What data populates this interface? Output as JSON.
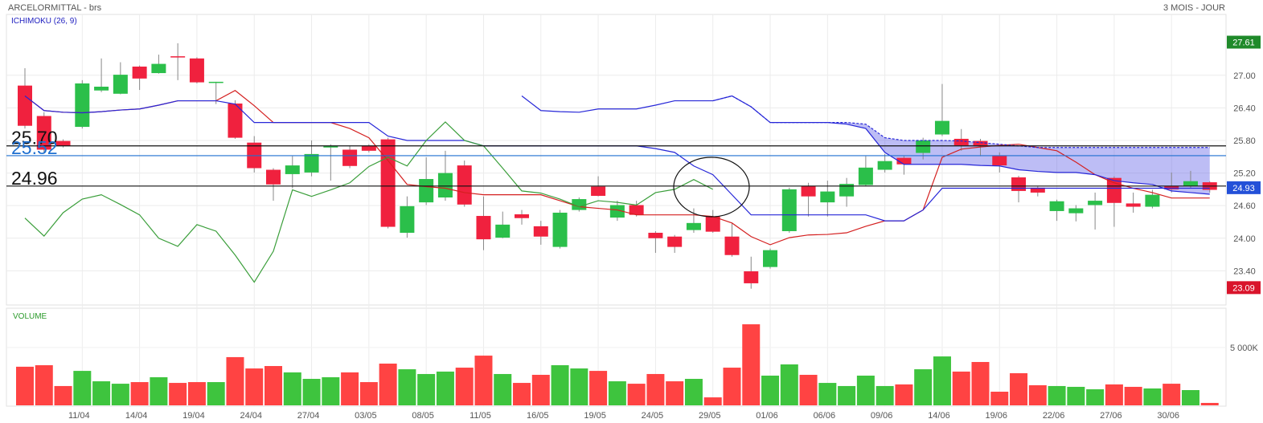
{
  "header": {
    "title": "ARCELORMITTAL - brs",
    "period": "3 MOIS - JOUR"
  },
  "chart_data": [
    {
      "type": "candlestick",
      "title": "ICHIMOKU (26, 9)",
      "categories": [
        null,
        null,
        null,
        "11/04",
        null,
        null,
        "14/04",
        null,
        null,
        "19/04",
        null,
        null,
        "24/04",
        null,
        null,
        "27/04",
        null,
        null,
        "03/05",
        null,
        null,
        "08/05",
        null,
        null,
        "11/05",
        null,
        null,
        "16/05",
        null,
        null,
        "19/05",
        null,
        null,
        "24/05",
        null,
        null,
        "29/05",
        null,
        null,
        "01/06",
        null,
        null,
        "06/06",
        null,
        null,
        "09/06",
        null,
        null,
        "14/06",
        null,
        null,
        "19/06",
        null,
        null,
        "22/06",
        null,
        null,
        "27/06",
        null,
        null,
        "30/06",
        null,
        null
      ],
      "open": [
        26.81,
        26.25,
        25.79,
        26.05,
        26.72,
        26.66,
        27.16,
        27.04,
        27.35,
        27.31,
        26.87,
        26.48,
        25.76,
        25.26,
        25.18,
        25.21,
        25.67,
        25.63,
        25.7,
        25.82,
        24.1,
        24.66,
        24.75,
        25.34,
        24.41,
        24.01,
        24.44,
        24.22,
        23.84,
        24.52,
        24.95,
        24.38,
        24.61,
        24.1,
        24.03,
        24.15,
        24.4,
        24.03,
        23.39,
        23.47,
        24.13,
        24.96,
        24.66,
        24.77,
        24.98,
        25.26,
        25.48,
        25.57,
        25.91,
        25.83,
        25.79,
        25.52,
        25.12,
        24.93,
        24.5,
        24.46,
        24.61,
        25.11,
        24.64,
        24.58,
        24.96,
        24.96,
        25.03
      ],
      "high": [
        27.13,
        26.32,
        25.82,
        26.91,
        27.31,
        27.24,
        27.18,
        27.38,
        27.59,
        27.33,
        26.88,
        26.54,
        25.88,
        25.29,
        25.51,
        25.8,
        25.73,
        25.7,
        25.73,
        25.85,
        24.77,
        25.49,
        25.61,
        25.43,
        24.77,
        24.49,
        24.52,
        24.32,
        24.52,
        24.75,
        25.14,
        24.69,
        24.69,
        24.13,
        24.06,
        24.55,
        24.52,
        24.28,
        23.66,
        23.81,
        24.93,
        25.02,
        25.06,
        25.11,
        25.51,
        25.55,
        25.52,
        25.85,
        26.84,
        26.01,
        25.83,
        25.58,
        25.15,
        24.95,
        24.71,
        24.61,
        24.84,
        25.14,
        24.84,
        24.89,
        25.21,
        25.24,
        25.05
      ],
      "low": [
        26.02,
        25.58,
        25.67,
        26.02,
        26.69,
        26.65,
        26.73,
        27.03,
        26.91,
        26.85,
        26.47,
        25.83,
        25.21,
        24.69,
        24.92,
        25.14,
        25.06,
        25.29,
        25.58,
        24.18,
        24.01,
        24.61,
        24.69,
        24.58,
        23.78,
        24.0,
        24.25,
        23.88,
        23.81,
        24.49,
        24.77,
        24.32,
        24.4,
        23.73,
        23.73,
        24.1,
        24.1,
        23.66,
        23.07,
        23.44,
        24.1,
        24.4,
        24.4,
        24.58,
        24.96,
        25.21,
        25.17,
        25.45,
        25.88,
        25.61,
        25.51,
        25.21,
        24.66,
        24.77,
        24.32,
        24.31,
        24.16,
        24.21,
        24.47,
        24.55,
        24.84,
        24.92,
        24.84
      ],
      "close": [
        26.07,
        25.63,
        25.7,
        26.85,
        26.79,
        27.01,
        26.94,
        27.21,
        27.33,
        26.87,
        26.88,
        25.85,
        25.29,
        24.99,
        25.34,
        25.55,
        25.7,
        25.33,
        25.61,
        24.21,
        24.59,
        25.09,
        25.2,
        24.62,
        23.98,
        24.25,
        24.37,
        24.03,
        24.47,
        24.72,
        24.78,
        24.61,
        24.43,
        24.0,
        23.84,
        24.28,
        24.12,
        23.69,
        23.17,
        23.78,
        24.9,
        24.77,
        24.86,
        25.0,
        25.3,
        25.42,
        25.36,
        25.8,
        26.16,
        25.71,
        25.71,
        25.34,
        24.87,
        24.84,
        24.68,
        24.55,
        24.69,
        24.65,
        24.58,
        24.8,
        24.9,
        25.05,
        24.89
      ],
      "up_color": "#2bbf4a",
      "down_color": "#f0213e",
      "ylim": [
        22.77,
        28.12
      ],
      "yticks": [
        {
          "value": 27,
          "label": "27.00"
        },
        {
          "value": 26.4,
          "label": "26.40"
        },
        {
          "value": 25.8,
          "label": "25.80"
        },
        {
          "value": 25.2,
          "label": "25.20"
        },
        {
          "value": 24.6,
          "label": "24.60"
        },
        {
          "value": 24,
          "label": "24.00"
        },
        {
          "value": 23.4,
          "label": "23.40"
        }
      ],
      "grid": true,
      "lines": [
        {
          "color": "#d42020",
          "values": [
            26.62,
            26.35,
            26.32,
            26.31,
            26.33,
            26.36,
            26.38,
            26.45,
            26.53,
            26.53,
            26.53,
            26.72,
            26.44,
            26.13,
            26.13,
            26.13,
            26.13,
            26.02,
            25.85,
            25.43,
            24.99,
            24.95,
            24.92,
            24.84,
            24.8,
            24.8,
            24.8,
            24.8,
            24.69,
            24.58,
            24.55,
            24.52,
            24.43,
            24.43,
            24.43,
            24.43,
            24.4,
            24.28,
            24.03,
            23.88,
            24.01,
            24.06,
            24.07,
            24.1,
            24.22,
            24.32,
            24.32,
            24.52,
            25.49,
            25.64,
            25.68,
            25.71,
            25.73,
            25.67,
            25.61,
            25.4,
            25.17,
            25.02,
            24.92,
            24.84,
            24.74,
            24.74,
            24.74
          ]
        },
        {
          "color": "#2727d8",
          "values": [
            26.62,
            26.35,
            26.32,
            26.31,
            26.33,
            26.36,
            26.38,
            26.45,
            26.53,
            26.53,
            26.53,
            26.47,
            26.13,
            26.13,
            26.13,
            26.13,
            26.13,
            26.13,
            26.13,
            25.88,
            25.8,
            25.8,
            25.8,
            25.8,
            25.7,
            25.7,
            25.7,
            25.7,
            25.7,
            25.7,
            25.7,
            25.7,
            25.7,
            25.65,
            25.58,
            25.33,
            25.17,
            24.8,
            24.43,
            24.43,
            24.43,
            24.43,
            24.43,
            24.43,
            24.43,
            24.32,
            24.32,
            24.52,
            24.92,
            24.92,
            24.92,
            24.92,
            24.92,
            24.92,
            24.92,
            24.92,
            24.92,
            24.92,
            24.92,
            24.92,
            24.92,
            24.92,
            24.92
          ]
        },
        {
          "color": "#2727d8",
          "values": [
            null,
            null,
            null,
            null,
            null,
            null,
            null,
            null,
            null,
            null,
            null,
            null,
            null,
            null,
            null,
            null,
            null,
            null,
            null,
            null,
            null,
            null,
            null,
            null,
            null,
            null,
            26.62,
            26.35,
            26.33,
            26.32,
            26.38,
            26.38,
            26.38,
            26.45,
            26.53,
            26.53,
            26.53,
            26.62,
            26.42,
            26.13,
            26.13,
            26.13,
            26.13,
            26.1,
            26.02,
            25.58,
            25.36,
            25.36,
            25.36,
            25.36,
            25.34,
            25.33,
            25.26,
            25.23,
            25.21,
            25.21,
            25.17,
            25.06,
            25.02,
            24.99,
            24.87,
            24.84,
            24.81
          ]
        },
        {
          "color": "#2727d8",
          "dashed": true,
          "values": [
            null,
            null,
            null,
            null,
            null,
            null,
            null,
            null,
            null,
            null,
            null,
            null,
            null,
            null,
            null,
            null,
            null,
            null,
            null,
            null,
            null,
            null,
            null,
            null,
            null,
            null,
            null,
            null,
            null,
            null,
            null,
            null,
            null,
            null,
            null,
            null,
            26.53,
            26.62,
            26.42,
            26.13,
            26.13,
            26.13,
            26.13,
            26.13,
            26.1,
            25.85,
            25.8,
            25.8,
            25.8,
            25.79,
            25.76,
            25.73,
            25.7,
            25.67,
            25.67,
            25.67,
            25.67,
            25.67,
            25.67,
            25.67,
            25.67,
            25.67,
            25.67
          ]
        },
        {
          "color": "#3a9e3a",
          "values": [
            24.37,
            24.04,
            24.47,
            24.72,
            24.8,
            24.62,
            24.43,
            24.0,
            23.85,
            24.25,
            24.13,
            23.69,
            23.19,
            23.76,
            24.89,
            24.77,
            24.89,
            25.02,
            25.32,
            25.49,
            25.33,
            25.8,
            26.14,
            25.8,
            25.7,
            25.29,
            24.87,
            24.83,
            24.72,
            24.58,
            24.69,
            24.66,
            24.61,
            24.84,
            24.9,
            25.08,
            24.9,
            null,
            null,
            null,
            null,
            null,
            null,
            null,
            null,
            null,
            null,
            null,
            null,
            null,
            null,
            null,
            null,
            null,
            null,
            null,
            null,
            null,
            null,
            null,
            null,
            null,
            null
          ]
        }
      ],
      "cloud": {
        "color": "#5a5ae6",
        "lines": [
          3,
          2
        ]
      },
      "levels": [
        {
          "value": 25.7,
          "label": "25.70",
          "color": "#111111"
        },
        {
          "value": 25.52,
          "label": "25.52",
          "color": "#1e6fd0"
        },
        {
          "value": 24.96,
          "label": "24.96",
          "color": "#111111"
        }
      ],
      "badges": [
        {
          "value": 27.61,
          "label": "27.61",
          "color": "#1f8a2a"
        },
        {
          "value": 24.93,
          "label": "24.93",
          "color": "#2350d8"
        },
        {
          "value": 23.09,
          "label": "23.09",
          "color": "#d9142b"
        }
      ]
    },
    {
      "type": "bar",
      "title": "VOLUME",
      "values": [
        3340,
        3470,
        1670,
        2980,
        2080,
        1870,
        2010,
        2430,
        1940,
        2010,
        2010,
        4170,
        3190,
        3400,
        2850,
        2290,
        2430,
        2850,
        2010,
        3610,
        3120,
        2710,
        2920,
        3260,
        4300,
        2710,
        1940,
        2640,
        3470,
        3190,
        2980,
        2080,
        1870,
        2710,
        2080,
        2290,
        690,
        3260,
        7010,
        2570,
        3540,
        2640,
        1940,
        1670,
        2570,
        1670,
        1810,
        3120,
        4230,
        2920,
        3750,
        1180,
        2780,
        1740,
        1670,
        1600,
        1390,
        1810,
        1600,
        1460,
        1870,
        1320,
        210
      ],
      "up_color": "#3ec43e",
      "down_color": "#ff4343",
      "ylim": [
        0,
        8400
      ],
      "yticks": [
        {
          "value": 5000,
          "label": "5 000K"
        }
      ]
    }
  ]
}
